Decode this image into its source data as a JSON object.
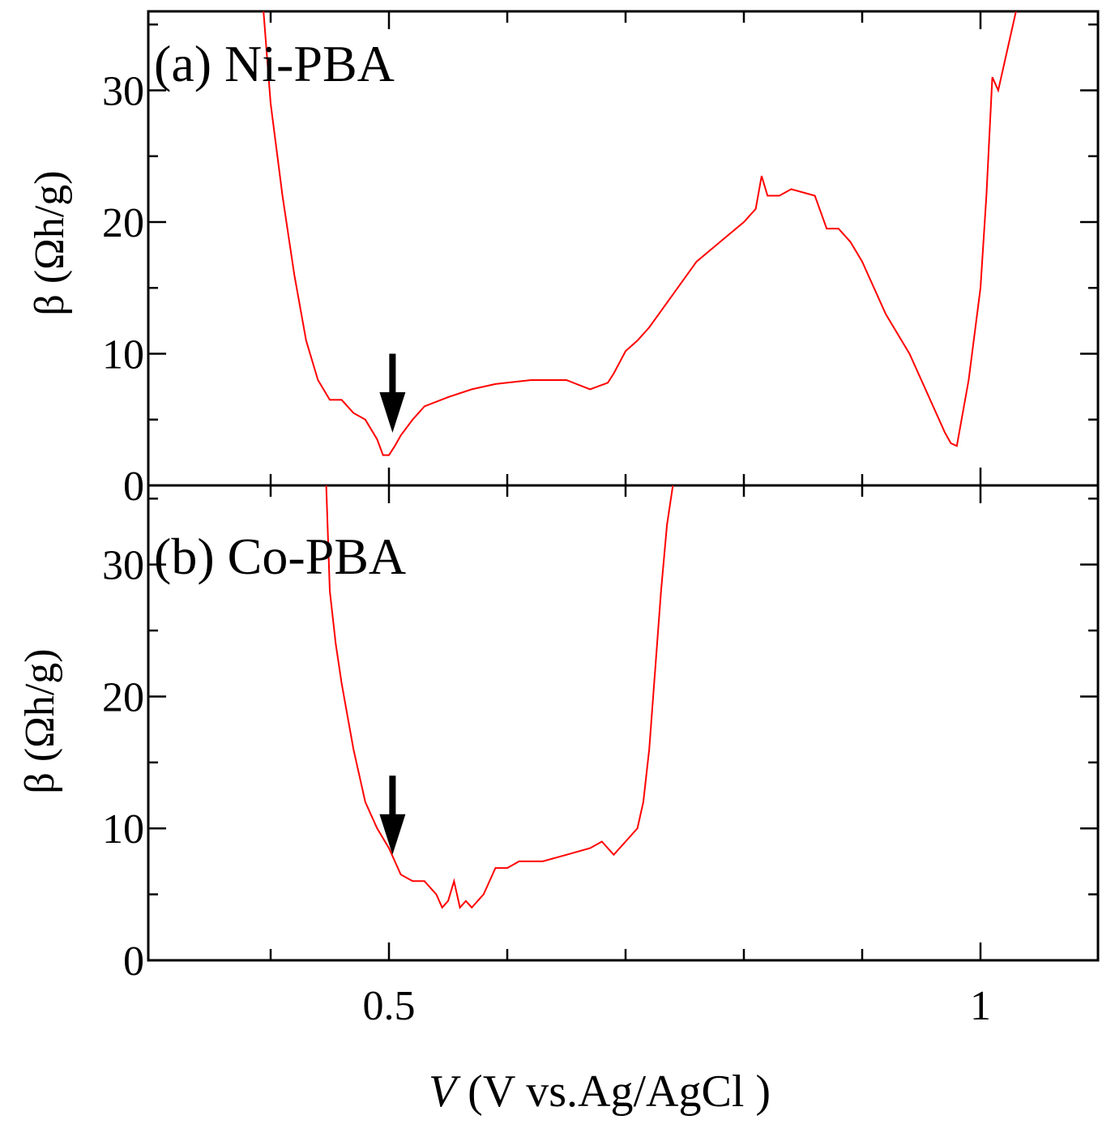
{
  "chart_data": [
    {
      "type": "line",
      "panel_label": "(a) Ni-PBA",
      "ylabel": "β (Ωh/g)",
      "xlim": [
        0.3,
        1.1
      ],
      "ylim": [
        0,
        36
      ],
      "yticks": [
        "0",
        "10",
        "20",
        "30"
      ],
      "series": [
        {
          "name": "Ni-PBA",
          "color": "#ff0000",
          "x": [
            0.394,
            0.4,
            0.41,
            0.42,
            0.43,
            0.44,
            0.45,
            0.46,
            0.47,
            0.48,
            0.49,
            0.495,
            0.5,
            0.505,
            0.51,
            0.52,
            0.53,
            0.55,
            0.57,
            0.59,
            0.62,
            0.65,
            0.67,
            0.685,
            0.69,
            0.7,
            0.71,
            0.72,
            0.74,
            0.76,
            0.78,
            0.8,
            0.81,
            0.815,
            0.82,
            0.83,
            0.84,
            0.86,
            0.87,
            0.88,
            0.89,
            0.9,
            0.92,
            0.94,
            0.96,
            0.97,
            0.975,
            0.98,
            0.99,
            1.0,
            1.005,
            1.01,
            1.015,
            1.02,
            1.03
          ],
          "y": [
            36,
            29,
            22,
            16,
            11,
            8,
            6.5,
            6.5,
            5.5,
            5,
            3.5,
            2.3,
            2.3,
            3.0,
            3.8,
            5.0,
            6.0,
            6.7,
            7.3,
            7.7,
            8.0,
            8.0,
            7.3,
            7.8,
            8.5,
            10.2,
            11.0,
            12.0,
            14.5,
            17.0,
            18.5,
            20.0,
            21.0,
            23.5,
            22.0,
            22.0,
            22.5,
            22.0,
            19.5,
            19.5,
            18.5,
            17.0,
            13.0,
            10.0,
            6.0,
            4.0,
            3.2,
            3.0,
            8.0,
            15.0,
            22.0,
            31.0,
            30.0,
            32.0,
            36.0
          ]
        }
      ],
      "annotation": {
        "type": "arrow",
        "x": 0.503,
        "y_from": 10,
        "y_to": 4.0
      }
    },
    {
      "type": "line",
      "panel_label": "(b) Co-PBA",
      "ylabel": "β (Ωh/g)",
      "xlabel": "V (V vs.Ag/AgCl )",
      "xlabel_var": "V",
      "xlabel_rest": " (V vs.Ag/AgCl )",
      "xlim": [
        0.3,
        1.1
      ],
      "ylim": [
        0,
        36
      ],
      "xticks": [
        "0.5",
        "1"
      ],
      "xtick_values": [
        0.5,
        1.0
      ],
      "yticks": [
        "0",
        "10",
        "20",
        "30"
      ],
      "series": [
        {
          "name": "Co-PBA",
          "color": "#ff0000",
          "x": [
            0.447,
            0.45,
            0.455,
            0.46,
            0.47,
            0.48,
            0.49,
            0.5,
            0.505,
            0.51,
            0.52,
            0.53,
            0.535,
            0.54,
            0.545,
            0.55,
            0.555,
            0.56,
            0.565,
            0.57,
            0.58,
            0.59,
            0.6,
            0.61,
            0.63,
            0.65,
            0.67,
            0.68,
            0.69,
            0.7,
            0.71,
            0.715,
            0.72,
            0.725,
            0.73,
            0.735,
            0.74
          ],
          "y": [
            36,
            28,
            24,
            21,
            16,
            12,
            10,
            8.5,
            7.5,
            6.5,
            6.0,
            6.0,
            5.5,
            5.0,
            4.0,
            4.5,
            6.0,
            4.0,
            4.5,
            4.0,
            5.0,
            7.0,
            7.0,
            7.5,
            7.5,
            8.0,
            8.5,
            9.0,
            8.0,
            9.0,
            10.0,
            12.0,
            16.0,
            22.0,
            28.0,
            33.0,
            36.0
          ]
        }
      ],
      "annotation": {
        "type": "arrow",
        "x": 0.503,
        "y_from": 14,
        "y_to": 8.0
      }
    }
  ]
}
